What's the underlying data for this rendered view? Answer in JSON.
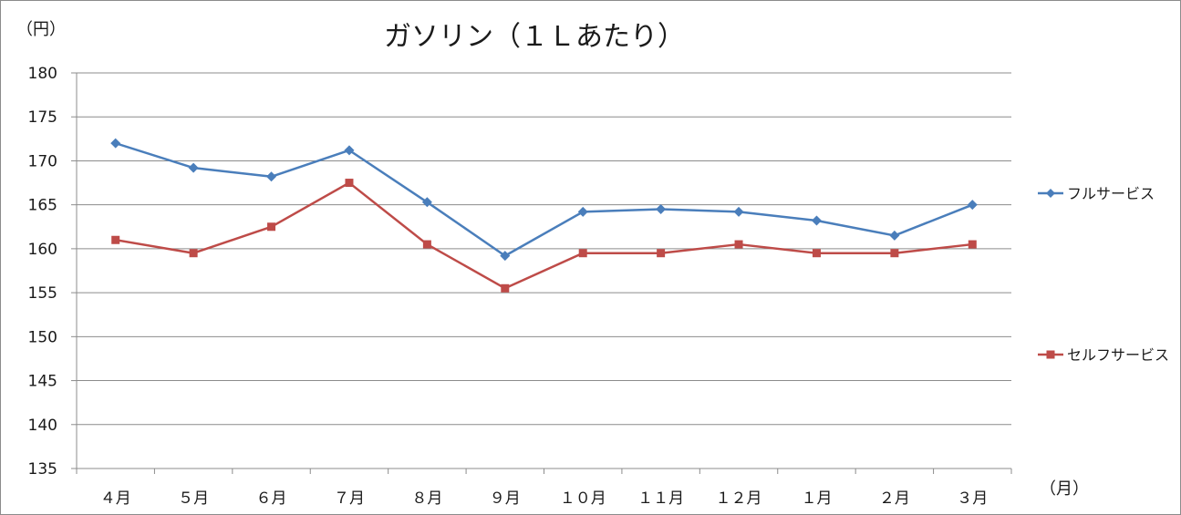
{
  "chart_data": {
    "type": "line",
    "title": "ガソリン（１Ｌあたり）",
    "ylabel": "（円）",
    "xlabel": "（月）",
    "ylim": [
      135,
      180
    ],
    "yticks": [
      "180",
      "175",
      "170",
      "165",
      "160",
      "155",
      "150",
      "145",
      "140",
      "135"
    ],
    "categories": [
      "４月",
      "５月",
      "６月",
      "７月",
      "８月",
      "９月",
      "１０月",
      "１１月",
      "１２月",
      "１月",
      "２月",
      "３月"
    ],
    "grid": true,
    "legend": "right",
    "series": [
      {
        "name": "フルサービス",
        "color": "#4a7ebb",
        "marker": "diamond",
        "values": [
          172,
          169.2,
          168.2,
          171.2,
          165.3,
          159.2,
          164.2,
          164.5,
          164.2,
          163.2,
          161.5,
          165
        ]
      },
      {
        "name": "セルフサービス",
        "color": "#be4b48",
        "marker": "square",
        "values": [
          161,
          159.5,
          162.5,
          167.5,
          160.5,
          155.5,
          159.5,
          159.5,
          160.5,
          159.5,
          159.5,
          160.5
        ]
      }
    ]
  }
}
